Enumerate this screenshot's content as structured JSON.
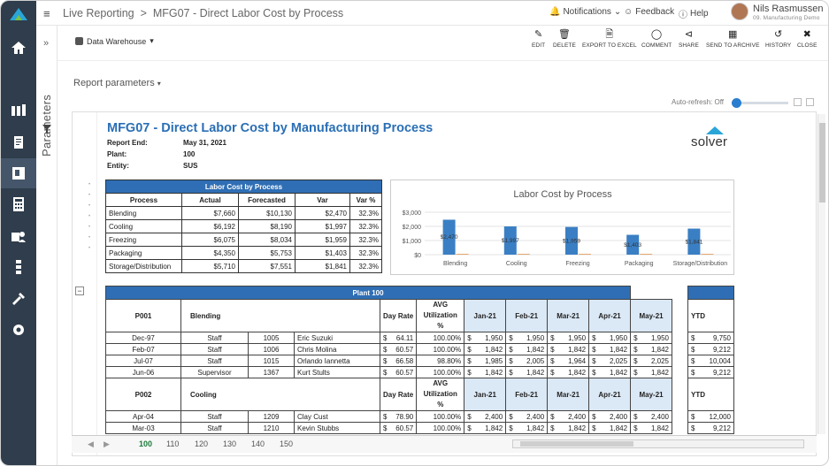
{
  "topbar": {
    "breadcrumb_root": "Live Reporting",
    "breadcrumb_sep": ">",
    "breadcrumb_page": "MFG07 - Direct Labor Cost by Process",
    "notifications": "Notifications",
    "feedback": "Feedback",
    "help": "Help",
    "user_name": "Nils Rasmussen",
    "user_role": "09. Manufacturing Demo"
  },
  "side": {
    "parameters_label": "Parameters"
  },
  "toolbar": {
    "data_source": "Data Warehouse",
    "buttons": [
      "EDIT",
      "DELETE",
      "EXPORT TO EXCEL",
      "COMMENT",
      "SHARE",
      "SEND TO ARCHIVE",
      "HISTORY",
      "CLOSE"
    ]
  },
  "report_params_label": "Report parameters",
  "auto_refresh": "Auto-refresh: Off",
  "report": {
    "title": "MFG07 - Direct Labor Cost by Manufacturing Process",
    "meta": [
      {
        "label": "Report End:",
        "value": "May 31, 2021"
      },
      {
        "label": "Plant:",
        "value": "100"
      },
      {
        "label": "Entity:",
        "value": "SUS"
      }
    ],
    "logo": "solver"
  },
  "labor_cost": {
    "title": "Labor Cost by Process",
    "columns": [
      "Process",
      "Actual",
      "Forecasted",
      "Var",
      "Var %"
    ],
    "rows": [
      [
        "Blending",
        "$7,660",
        "$10,130",
        "$2,470",
        "32.3%"
      ],
      [
        "Cooling",
        "$6,192",
        "$8,190",
        "$1,997",
        "32.3%"
      ],
      [
        "Freezing",
        "$6,075",
        "$8,034",
        "$1,959",
        "32.3%"
      ],
      [
        "Packaging",
        "$4,350",
        "$5,753",
        "$1,403",
        "32.3%"
      ],
      [
        "Storage/Distribution",
        "$5,710",
        "$7,551",
        "$1,841",
        "32.3%"
      ]
    ]
  },
  "chart_data": {
    "type": "bar",
    "title": "Labor Cost by Process",
    "categories": [
      "Blending",
      "Cooling",
      "Freezing",
      "Packaging",
      "Storage/Distribution"
    ],
    "series": [
      {
        "values": [
          2470,
          1997,
          1959,
          1403,
          1841
        ],
        "color": "#3a7fc4"
      },
      {
        "values": [
          60,
          60,
          60,
          60,
          60
        ],
        "color": "#e2a66a"
      }
    ],
    "data_labels": [
      "$2,470",
      "$1,997",
      "$1,959",
      "$1,403",
      "$1,841"
    ],
    "y_ticks": [
      "$3,000",
      "$2,000",
      "$1,000",
      "$0"
    ],
    "ylim": [
      0,
      3000
    ]
  },
  "plant": {
    "title": "Plant 100",
    "groups": [
      {
        "code": "P001",
        "process": "Blending",
        "rows": [
          [
            "Dec-97",
            "Staff",
            "1005",
            "Eric Suzuki",
            "64.11",
            "100.00%",
            "1,950",
            "1,950",
            "1,950",
            "1,950",
            "1,950",
            "9,750"
          ],
          [
            "Feb-07",
            "Staff",
            "1006",
            "Chris Molina",
            "60.57",
            "100.00%",
            "1,842",
            "1,842",
            "1,842",
            "1,842",
            "1,842",
            "9,212"
          ],
          [
            "Jul-07",
            "Staff",
            "1015",
            "Orlando Iannetta",
            "66.58",
            "98.80%",
            "1,985",
            "2,005",
            "1,964",
            "2,025",
            "2,025",
            "10,004"
          ],
          [
            "Jun-06",
            "Supervisor",
            "1367",
            "Kurt Stults",
            "60.57",
            "100.00%",
            "1,842",
            "1,842",
            "1,842",
            "1,842",
            "1,842",
            "9,212"
          ]
        ]
      },
      {
        "code": "P002",
        "process": "Cooling",
        "rows": [
          [
            "Apr-04",
            "Staff",
            "1209",
            "Clay Cust",
            "78.90",
            "100.00%",
            "2,400",
            "2,400",
            "2,400",
            "2,400",
            "2,400",
            "12,000"
          ],
          [
            "Mar-03",
            "Staff",
            "1210",
            "Kevin Stubbs",
            "60.57",
            "100.00%",
            "1,842",
            "1,842",
            "1,842",
            "1,842",
            "1,842",
            "9,212"
          ]
        ]
      }
    ],
    "headers": {
      "day_rate": "Day Rate",
      "avg_util": "AVG Utilization %",
      "months": [
        "Jan-21",
        "Feb-21",
        "Mar-21",
        "Apr-21",
        "May-21"
      ],
      "ytd": "YTD"
    },
    "currency": "$"
  },
  "sheet_tabs": [
    "100",
    "110",
    "120",
    "130",
    "140",
    "150"
  ]
}
